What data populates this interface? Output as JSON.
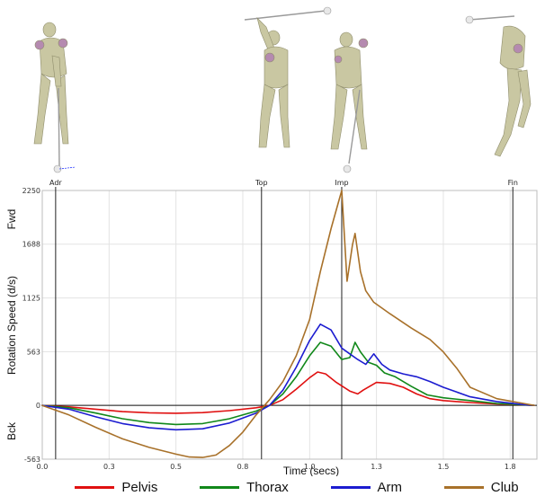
{
  "chart_data": {
    "type": "line",
    "title": "",
    "xlabel": "Time (secs)",
    "ylabel": "Rotation Speed (d/s)",
    "y_top_label": "Fwd",
    "y_bottom_label": "Bck",
    "xlim": [
      0.0,
      1.85
    ],
    "ylim": [
      -563,
      2250
    ],
    "x_ticks": [
      "0.0",
      "0.3",
      "0.5",
      "0.8",
      "1.0",
      "1.3",
      "1.5",
      "1.8"
    ],
    "x_tick_values": [
      0.0,
      0.25,
      0.5,
      0.75,
      1.0,
      1.25,
      1.5,
      1.75
    ],
    "y_ticks": [
      "2250",
      "1688",
      "1125",
      "563",
      "0",
      "-563"
    ],
    "y_tick_values": [
      2250,
      1688,
      1125,
      563,
      0,
      -563
    ],
    "grid": true,
    "legend_position": "bottom",
    "events": [
      {
        "label": "Adr",
        "x": 0.05
      },
      {
        "label": "Top",
        "x": 0.82
      },
      {
        "label": "Imp",
        "x": 1.12
      },
      {
        "label": "Fin",
        "x": 1.76
      }
    ],
    "series": [
      {
        "name": "Pelvis",
        "color": "#e01010",
        "points": [
          [
            0.0,
            0
          ],
          [
            0.1,
            -15
          ],
          [
            0.2,
            -40
          ],
          [
            0.3,
            -65
          ],
          [
            0.4,
            -78
          ],
          [
            0.5,
            -82
          ],
          [
            0.6,
            -76
          ],
          [
            0.7,
            -55
          ],
          [
            0.8,
            -25
          ],
          [
            0.85,
            0
          ],
          [
            0.9,
            60
          ],
          [
            0.95,
            170
          ],
          [
            1.0,
            290
          ],
          [
            1.03,
            350
          ],
          [
            1.06,
            330
          ],
          [
            1.1,
            240
          ],
          [
            1.15,
            150
          ],
          [
            1.18,
            120
          ],
          [
            1.2,
            160
          ],
          [
            1.25,
            240
          ],
          [
            1.3,
            230
          ],
          [
            1.35,
            190
          ],
          [
            1.4,
            120
          ],
          [
            1.45,
            70
          ],
          [
            1.5,
            50
          ],
          [
            1.55,
            40
          ],
          [
            1.6,
            30
          ],
          [
            1.7,
            15
          ],
          [
            1.8,
            5
          ],
          [
            1.84,
            0
          ]
        ]
      },
      {
        "name": "Thorax",
        "color": "#11881a",
        "points": [
          [
            0.0,
            0
          ],
          [
            0.1,
            -25
          ],
          [
            0.2,
            -80
          ],
          [
            0.3,
            -140
          ],
          [
            0.4,
            -180
          ],
          [
            0.5,
            -200
          ],
          [
            0.6,
            -190
          ],
          [
            0.7,
            -140
          ],
          [
            0.8,
            -60
          ],
          [
            0.85,
            0
          ],
          [
            0.9,
            120
          ],
          [
            0.95,
            300
          ],
          [
            1.0,
            520
          ],
          [
            1.04,
            660
          ],
          [
            1.08,
            620
          ],
          [
            1.12,
            480
          ],
          [
            1.15,
            500
          ],
          [
            1.17,
            660
          ],
          [
            1.19,
            560
          ],
          [
            1.22,
            450
          ],
          [
            1.25,
            420
          ],
          [
            1.28,
            340
          ],
          [
            1.32,
            300
          ],
          [
            1.38,
            200
          ],
          [
            1.44,
            110
          ],
          [
            1.5,
            80
          ],
          [
            1.6,
            50
          ],
          [
            1.7,
            20
          ],
          [
            1.8,
            5
          ],
          [
            1.84,
            0
          ]
        ]
      },
      {
        "name": "Arm",
        "color": "#1c1cd0",
        "points": [
          [
            0.0,
            0
          ],
          [
            0.1,
            -40
          ],
          [
            0.2,
            -120
          ],
          [
            0.3,
            -190
          ],
          [
            0.4,
            -235
          ],
          [
            0.5,
            -255
          ],
          [
            0.6,
            -245
          ],
          [
            0.7,
            -185
          ],
          [
            0.8,
            -80
          ],
          [
            0.85,
            0
          ],
          [
            0.9,
            160
          ],
          [
            0.95,
            400
          ],
          [
            1.0,
            680
          ],
          [
            1.04,
            850
          ],
          [
            1.08,
            790
          ],
          [
            1.12,
            600
          ],
          [
            1.15,
            540
          ],
          [
            1.18,
            480
          ],
          [
            1.21,
            430
          ],
          [
            1.24,
            540
          ],
          [
            1.27,
            430
          ],
          [
            1.3,
            370
          ],
          [
            1.35,
            330
          ],
          [
            1.4,
            300
          ],
          [
            1.45,
            250
          ],
          [
            1.5,
            190
          ],
          [
            1.55,
            140
          ],
          [
            1.6,
            90
          ],
          [
            1.7,
            40
          ],
          [
            1.8,
            8
          ],
          [
            1.84,
            0
          ]
        ]
      },
      {
        "name": "Club",
        "color": "#a8712a",
        "points": [
          [
            0.0,
            0
          ],
          [
            0.1,
            -100
          ],
          [
            0.2,
            -230
          ],
          [
            0.3,
            -350
          ],
          [
            0.4,
            -440
          ],
          [
            0.5,
            -510
          ],
          [
            0.55,
            -540
          ],
          [
            0.6,
            -545
          ],
          [
            0.65,
            -520
          ],
          [
            0.7,
            -420
          ],
          [
            0.75,
            -280
          ],
          [
            0.8,
            -100
          ],
          [
            0.85,
            60
          ],
          [
            0.9,
            250
          ],
          [
            0.95,
            520
          ],
          [
            1.0,
            900
          ],
          [
            1.04,
            1400
          ],
          [
            1.08,
            1850
          ],
          [
            1.11,
            2150
          ],
          [
            1.12,
            2250
          ],
          [
            1.14,
            1300
          ],
          [
            1.16,
            1680
          ],
          [
            1.17,
            1800
          ],
          [
            1.19,
            1400
          ],
          [
            1.21,
            1200
          ],
          [
            1.24,
            1080
          ],
          [
            1.3,
            960
          ],
          [
            1.38,
            810
          ],
          [
            1.45,
            690
          ],
          [
            1.5,
            560
          ],
          [
            1.55,
            390
          ],
          [
            1.6,
            190
          ],
          [
            1.7,
            70
          ],
          [
            1.8,
            20
          ],
          [
            1.84,
            0
          ]
        ]
      }
    ]
  }
}
